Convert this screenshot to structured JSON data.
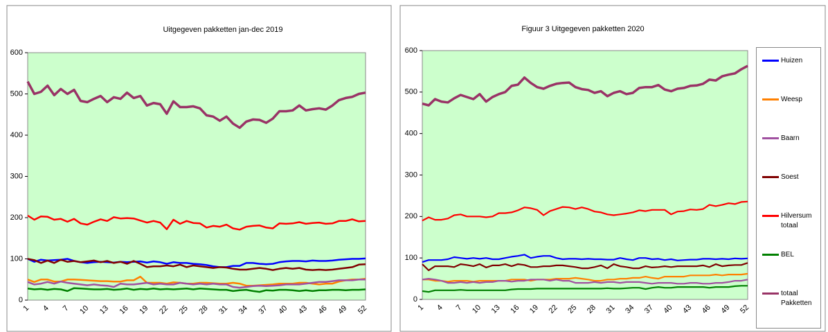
{
  "chart_data": [
    {
      "type": "line",
      "title": "Uitgegeven pakketten jan-dec 2019",
      "categories": [
        1,
        null,
        null,
        4,
        null,
        null,
        7,
        null,
        null,
        10,
        null,
        null,
        13,
        null,
        null,
        16,
        null,
        null,
        19,
        null,
        null,
        22,
        null,
        null,
        25,
        null,
        null,
        28,
        null,
        null,
        31,
        null,
        null,
        34,
        null,
        null,
        37,
        null,
        null,
        40,
        null,
        null,
        43,
        null,
        null,
        46,
        null,
        null,
        49,
        null,
        null,
        52
      ],
      "ylim": [
        0,
        600
      ],
      "yticks": [
        0,
        100,
        200,
        300,
        400,
        500,
        600
      ],
      "background": "#ccffcc",
      "series": [
        {
          "color": "#993366",
          "values": [
            530,
            500,
            505,
            520,
            497,
            512,
            500,
            510,
            483,
            480,
            488,
            495,
            480,
            492,
            488,
            503,
            490,
            495,
            472,
            478,
            475,
            452,
            482,
            468,
            468,
            470,
            465,
            448,
            445,
            435,
            445,
            428,
            418,
            433,
            438,
            437,
            430,
            440,
            458,
            458,
            460,
            472,
            460,
            463,
            465,
            462,
            472,
            485,
            490,
            493,
            500,
            503
          ]
        },
        {
          "color": "#ff0000",
          "values": [
            205,
            195,
            203,
            202,
            195,
            197,
            190,
            197,
            186,
            183,
            190,
            196,
            192,
            201,
            198,
            199,
            198,
            193,
            188,
            192,
            188,
            172,
            195,
            185,
            192,
            187,
            186,
            176,
            180,
            178,
            183,
            174,
            171,
            178,
            180,
            181,
            176,
            174,
            186,
            185,
            186,
            189,
            185,
            187,
            188,
            185,
            186,
            192,
            192,
            196,
            191,
            192
          ]
        },
        {
          "color": "#0000ff",
          "values": [
            100,
            93,
            98,
            96,
            97,
            98,
            100,
            95,
            92,
            90,
            92,
            93,
            92,
            91,
            93,
            92,
            93,
            94,
            91,
            94,
            92,
            88,
            92,
            90,
            90,
            88,
            87,
            85,
            82,
            80,
            80,
            83,
            83,
            90,
            90,
            88,
            87,
            88,
            92,
            94,
            95,
            95,
            94,
            96,
            95,
            95,
            96,
            98,
            99,
            100,
            100,
            101
          ]
        },
        {
          "color": "#800000",
          "values": [
            100,
            97,
            90,
            96,
            90,
            98,
            93,
            95,
            92,
            94,
            96,
            92,
            95,
            90,
            93,
            88,
            95,
            88,
            80,
            82,
            82,
            84,
            82,
            86,
            80,
            84,
            82,
            80,
            78,
            80,
            79,
            76,
            74,
            74,
            76,
            78,
            76,
            73,
            76,
            78,
            76,
            78,
            74,
            73,
            74,
            73,
            74,
            76,
            78,
            80,
            86,
            87
          ]
        },
        {
          "color": "#ff8000",
          "values": [
            50,
            44,
            50,
            50,
            45,
            45,
            50,
            50,
            49,
            48,
            47,
            46,
            46,
            45,
            45,
            48,
            48,
            57,
            42,
            42,
            42,
            40,
            43,
            42,
            40,
            40,
            42,
            42,
            41,
            40,
            40,
            42,
            40,
            35,
            35,
            36,
            37,
            38,
            40,
            40,
            40,
            42,
            42,
            40,
            38,
            40,
            40,
            45,
            48,
            50,
            50,
            52
          ]
        },
        {
          "color": "#a050a0",
          "values": [
            44,
            38,
            40,
            44,
            40,
            45,
            42,
            40,
            38,
            36,
            38,
            36,
            35,
            32,
            40,
            38,
            38,
            40,
            42,
            38,
            40,
            38,
            38,
            42,
            40,
            38,
            40,
            38,
            40,
            38,
            38,
            32,
            30,
            32,
            34,
            35,
            34,
            35,
            36,
            38,
            38,
            38,
            40,
            42,
            44,
            44,
            46,
            48,
            48,
            48,
            50,
            50
          ]
        },
        {
          "color": "#008000",
          "values": [
            28,
            26,
            27,
            25,
            27,
            26,
            22,
            29,
            28,
            27,
            26,
            26,
            27,
            25,
            26,
            28,
            25,
            27,
            26,
            28,
            26,
            27,
            26,
            27,
            28,
            26,
            28,
            27,
            26,
            25,
            25,
            22,
            24,
            25,
            22,
            20,
            24,
            23,
            25,
            25,
            24,
            22,
            24,
            22,
            24,
            24,
            25,
            25,
            24,
            25,
            25,
            26
          ]
        }
      ]
    },
    {
      "type": "line",
      "title": "Figuur 3 Uitgegeven pakketten 2020",
      "categories": [
        1,
        null,
        null,
        4,
        null,
        null,
        7,
        null,
        null,
        10,
        null,
        null,
        13,
        null,
        null,
        16,
        null,
        null,
        19,
        null,
        null,
        22,
        null,
        null,
        25,
        null,
        null,
        28,
        null,
        null,
        31,
        null,
        null,
        34,
        null,
        null,
        37,
        null,
        null,
        40,
        null,
        null,
        43,
        null,
        null,
        46,
        null,
        null,
        49,
        null,
        null,
        52
      ],
      "ylim": [
        0,
        600
      ],
      "yticks": [
        0,
        100,
        200,
        300,
        400,
        500,
        600
      ],
      "background": "#ccffcc",
      "legend": "right",
      "series": [
        {
          "name": "Huizen",
          "color": "#0000ff",
          "values": [
            90,
            95,
            95,
            95,
            97,
            102,
            100,
            98,
            100,
            98,
            100,
            97,
            97,
            100,
            103,
            105,
            108,
            100,
            103,
            105,
            105,
            100,
            97,
            98,
            98,
            97,
            98,
            97,
            97,
            96,
            96,
            100,
            97,
            95,
            100,
            100,
            97,
            98,
            95,
            97,
            94,
            95,
            96,
            96,
            98,
            98,
            97,
            98,
            97,
            99,
            98,
            99
          ]
        },
        {
          "name": "Weesp",
          "color": "#ff8000",
          "values": [
            48,
            48,
            45,
            45,
            43,
            45,
            45,
            45,
            43,
            45,
            45,
            45,
            45,
            45,
            48,
            48,
            48,
            45,
            48,
            48,
            48,
            50,
            50,
            50,
            52,
            50,
            48,
            45,
            45,
            48,
            48,
            50,
            50,
            52,
            52,
            55,
            52,
            50,
            55,
            55,
            55,
            55,
            58,
            58,
            58,
            58,
            60,
            58,
            60,
            60,
            60,
            62
          ]
        },
        {
          "name": "Baarn",
          "color": "#a050a0",
          "values": [
            48,
            50,
            48,
            45,
            40,
            40,
            42,
            40,
            42,
            40,
            42,
            42,
            45,
            45,
            43,
            45,
            45,
            48,
            48,
            48,
            45,
            48,
            45,
            45,
            40,
            40,
            40,
            42,
            40,
            42,
            42,
            40,
            42,
            42,
            42,
            40,
            38,
            40,
            40,
            40,
            38,
            38,
            40,
            40,
            38,
            38,
            40,
            40,
            42,
            45,
            45,
            48
          ]
        },
        {
          "name": "Soest",
          "color": "#800000",
          "values": [
            85,
            70,
            80,
            80,
            80,
            78,
            85,
            83,
            80,
            85,
            77,
            82,
            82,
            85,
            80,
            85,
            83,
            78,
            78,
            80,
            80,
            82,
            82,
            80,
            78,
            75,
            75,
            78,
            82,
            75,
            85,
            80,
            78,
            75,
            75,
            80,
            77,
            78,
            80,
            78,
            80,
            80,
            80,
            80,
            82,
            78,
            85,
            80,
            82,
            83,
            83,
            88
          ]
        },
        {
          "name": "Hilversum totaal",
          "color": "#ff0000",
          "values": [
            190,
            198,
            192,
            192,
            195,
            203,
            205,
            200,
            200,
            200,
            198,
            200,
            208,
            208,
            210,
            215,
            222,
            220,
            216,
            203,
            213,
            218,
            223,
            222,
            218,
            222,
            218,
            212,
            210,
            205,
            203,
            205,
            207,
            210,
            215,
            213,
            216,
            216,
            216,
            205,
            212,
            213,
            217,
            216,
            218,
            228,
            225,
            228,
            232,
            230,
            235,
            236
          ]
        },
        {
          "name": "BEL",
          "color": "#008000",
          "values": [
            20,
            18,
            22,
            22,
            22,
            22,
            23,
            22,
            22,
            22,
            22,
            22,
            22,
            22,
            24,
            25,
            25,
            25,
            26,
            26,
            26,
            26,
            26,
            26,
            26,
            26,
            26,
            26,
            26,
            27,
            26,
            26,
            27,
            28,
            28,
            25,
            28,
            30,
            28,
            28,
            30,
            30,
            30,
            30,
            30,
            28,
            30,
            30,
            30,
            32,
            33,
            33
          ]
        },
        {
          "name": "totaal Pakketten",
          "color": "#993366",
          "values": [
            472,
            468,
            483,
            477,
            475,
            485,
            493,
            488,
            483,
            495,
            477,
            488,
            495,
            500,
            515,
            518,
            535,
            522,
            512,
            508,
            515,
            520,
            522,
            523,
            512,
            507,
            505,
            498,
            502,
            490,
            498,
            502,
            495,
            498,
            510,
            512,
            512,
            517,
            506,
            502,
            508,
            510,
            515,
            516,
            520,
            530,
            528,
            538,
            542,
            545,
            555,
            563
          ]
        }
      ]
    }
  ]
}
